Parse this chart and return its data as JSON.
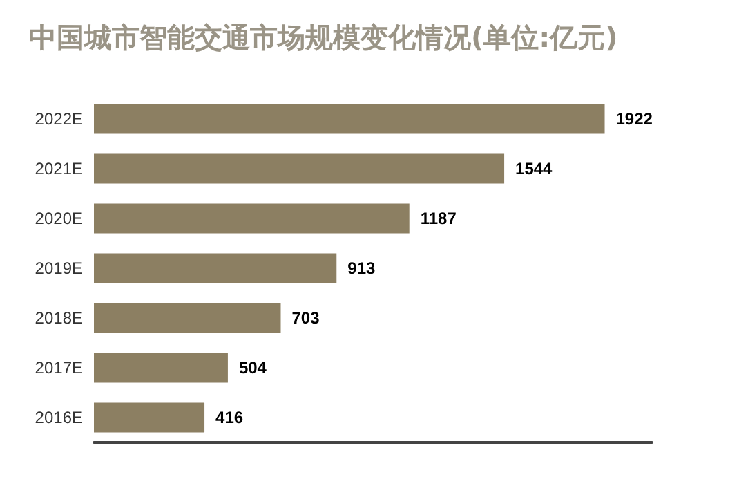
{
  "chart_data": {
    "type": "bar",
    "title": "中国城市智能交通市场规模变化情况(单位:亿元)",
    "orientation": "horizontal",
    "categories": [
      "2022E",
      "2021E",
      "2020E",
      "2019E",
      "2018E",
      "2017E",
      "2016E"
    ],
    "values": [
      1922,
      1544,
      1187,
      913,
      703,
      504,
      416
    ],
    "color": "#8c7f62",
    "data_labels": true
  }
}
